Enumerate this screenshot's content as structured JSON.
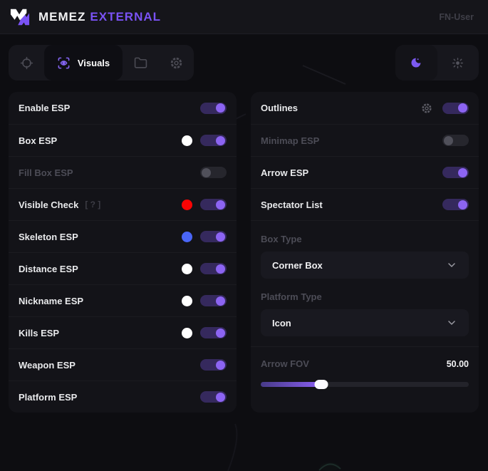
{
  "header": {
    "brand_primary": "MEMEZ",
    "brand_secondary": "EXTERNAL",
    "user_label": "FN-User"
  },
  "tabs": {
    "items": [
      {
        "icon": "crosshair-icon",
        "label": ""
      },
      {
        "icon": "scan-eye-icon",
        "label": "Visuals",
        "active": true
      },
      {
        "icon": "folder-icon",
        "label": ""
      },
      {
        "icon": "gear-icon",
        "label": ""
      }
    ],
    "active_label": "Visuals"
  },
  "theme_switch": {
    "modes": [
      {
        "icon": "moon-icon",
        "active": true
      },
      {
        "icon": "sun-icon",
        "active": false
      }
    ]
  },
  "left_panel": {
    "rows": [
      {
        "label": "Enable ESP",
        "toggle": true
      },
      {
        "label": "Box ESP",
        "color": "#ffffff",
        "toggle": true
      },
      {
        "label": "Fill Box ESP",
        "toggle": false,
        "disabled": true
      },
      {
        "label": "Visible Check",
        "hint": "[ ? ]",
        "color": "#fb0404",
        "toggle": true
      },
      {
        "label": "Skeleton ESP",
        "color": "#4a66f7",
        "toggle": true
      },
      {
        "label": "Distance ESP",
        "color": "#ffffff",
        "toggle": true
      },
      {
        "label": "Nickname ESP",
        "color": "#ffffff",
        "toggle": true
      },
      {
        "label": "Kills ESP",
        "color": "#ffffff",
        "toggle": true
      },
      {
        "label": "Weapon ESP",
        "toggle": true
      },
      {
        "label": "Platform ESP",
        "toggle": true
      }
    ]
  },
  "right_panel": {
    "rows": [
      {
        "label": "Outlines",
        "gear": true,
        "toggle": true
      },
      {
        "label": "Minimap ESP",
        "toggle": false,
        "disabled": true
      },
      {
        "label": "Arrow ESP",
        "toggle": true
      },
      {
        "label": "Spectator List",
        "toggle": true
      }
    ],
    "box_type": {
      "label": "Box Type",
      "value": "Corner Box"
    },
    "platform_type": {
      "label": "Platform Type",
      "value": "Icon"
    },
    "slider": {
      "label": "Arrow FOV",
      "value": "50.00",
      "percent": 29
    }
  },
  "colors": {
    "accent": "#8c64f2",
    "accent_text": "#7a52f5",
    "toggle_on_track": "#35295d",
    "swatch_red": "#fb0404",
    "swatch_blue": "#4a66f7",
    "swatch_white": "#ffffff",
    "panel_bg": "#131318",
    "page_bg": "#0d0d11"
  }
}
